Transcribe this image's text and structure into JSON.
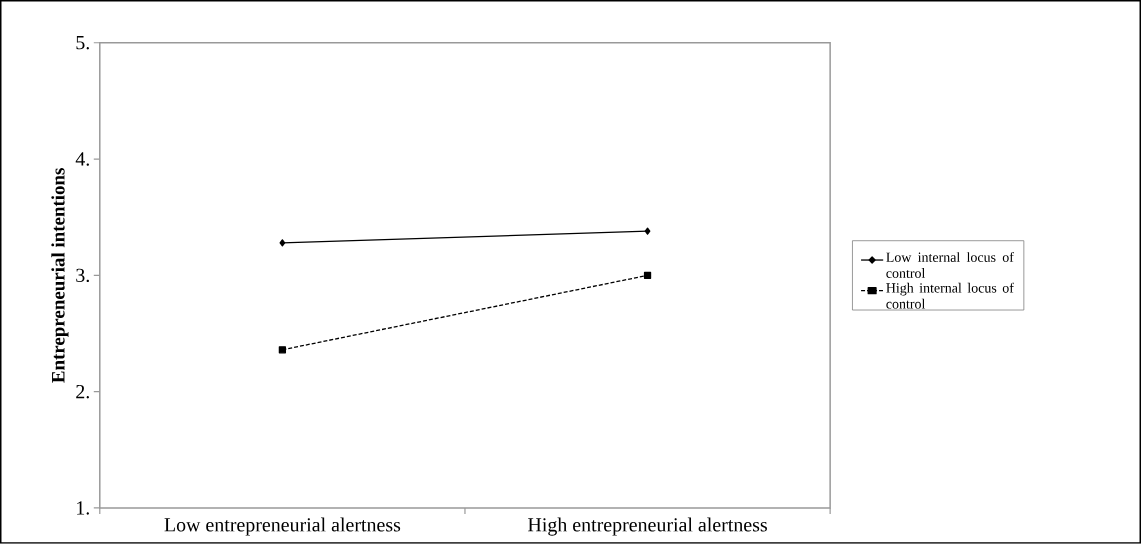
{
  "chart_data": {
    "type": "line",
    "ylabel": "Entrepreneurial intentions",
    "categories": [
      "Low entrepreneurial alertness",
      "High entrepreneurial alertness"
    ],
    "series": [
      {
        "name": "Low internal locus of control",
        "color": "#000000",
        "values": [
          3.28,
          3.38
        ],
        "marker": "diamond",
        "line_style": "solid"
      },
      {
        "name": "High internal locus of control",
        "color": "#000000",
        "values": [
          2.36,
          3.0
        ],
        "marker": "square",
        "line_style": "dashed"
      }
    ],
    "ylim": [
      1,
      5
    ],
    "yticks": [
      {
        "value": 1,
        "label": "1."
      },
      {
        "value": 2,
        "label": "2."
      },
      {
        "value": 3,
        "label": "3."
      },
      {
        "value": 4,
        "label": "4."
      },
      {
        "value": 5,
        "label": "5."
      }
    ],
    "grid": false,
    "legend": "right"
  }
}
